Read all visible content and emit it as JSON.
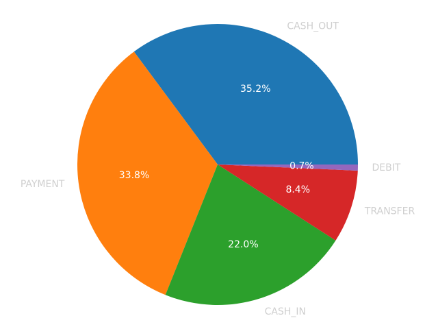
{
  "chart_data": {
    "type": "pie",
    "title": "",
    "start_angle_deg": 0,
    "direction": "counterclockwise",
    "slices": [
      {
        "label": "CASH_OUT",
        "percent": 35.2,
        "percent_label": "35.2%",
        "color": "#1f77b4"
      },
      {
        "label": "PAYMENT",
        "percent": 33.8,
        "percent_label": "33.8%",
        "color": "#ff7f0e"
      },
      {
        "label": "CASH_IN",
        "percent": 22.0,
        "percent_label": "22.0%",
        "color": "#2ca02c"
      },
      {
        "label": "TRANSFER",
        "percent": 8.4,
        "percent_label": "8.4%",
        "color": "#d62728"
      },
      {
        "label": "DEBIT",
        "percent": 0.7,
        "percent_label": "0.7%",
        "color": "#9467bd"
      }
    ]
  }
}
